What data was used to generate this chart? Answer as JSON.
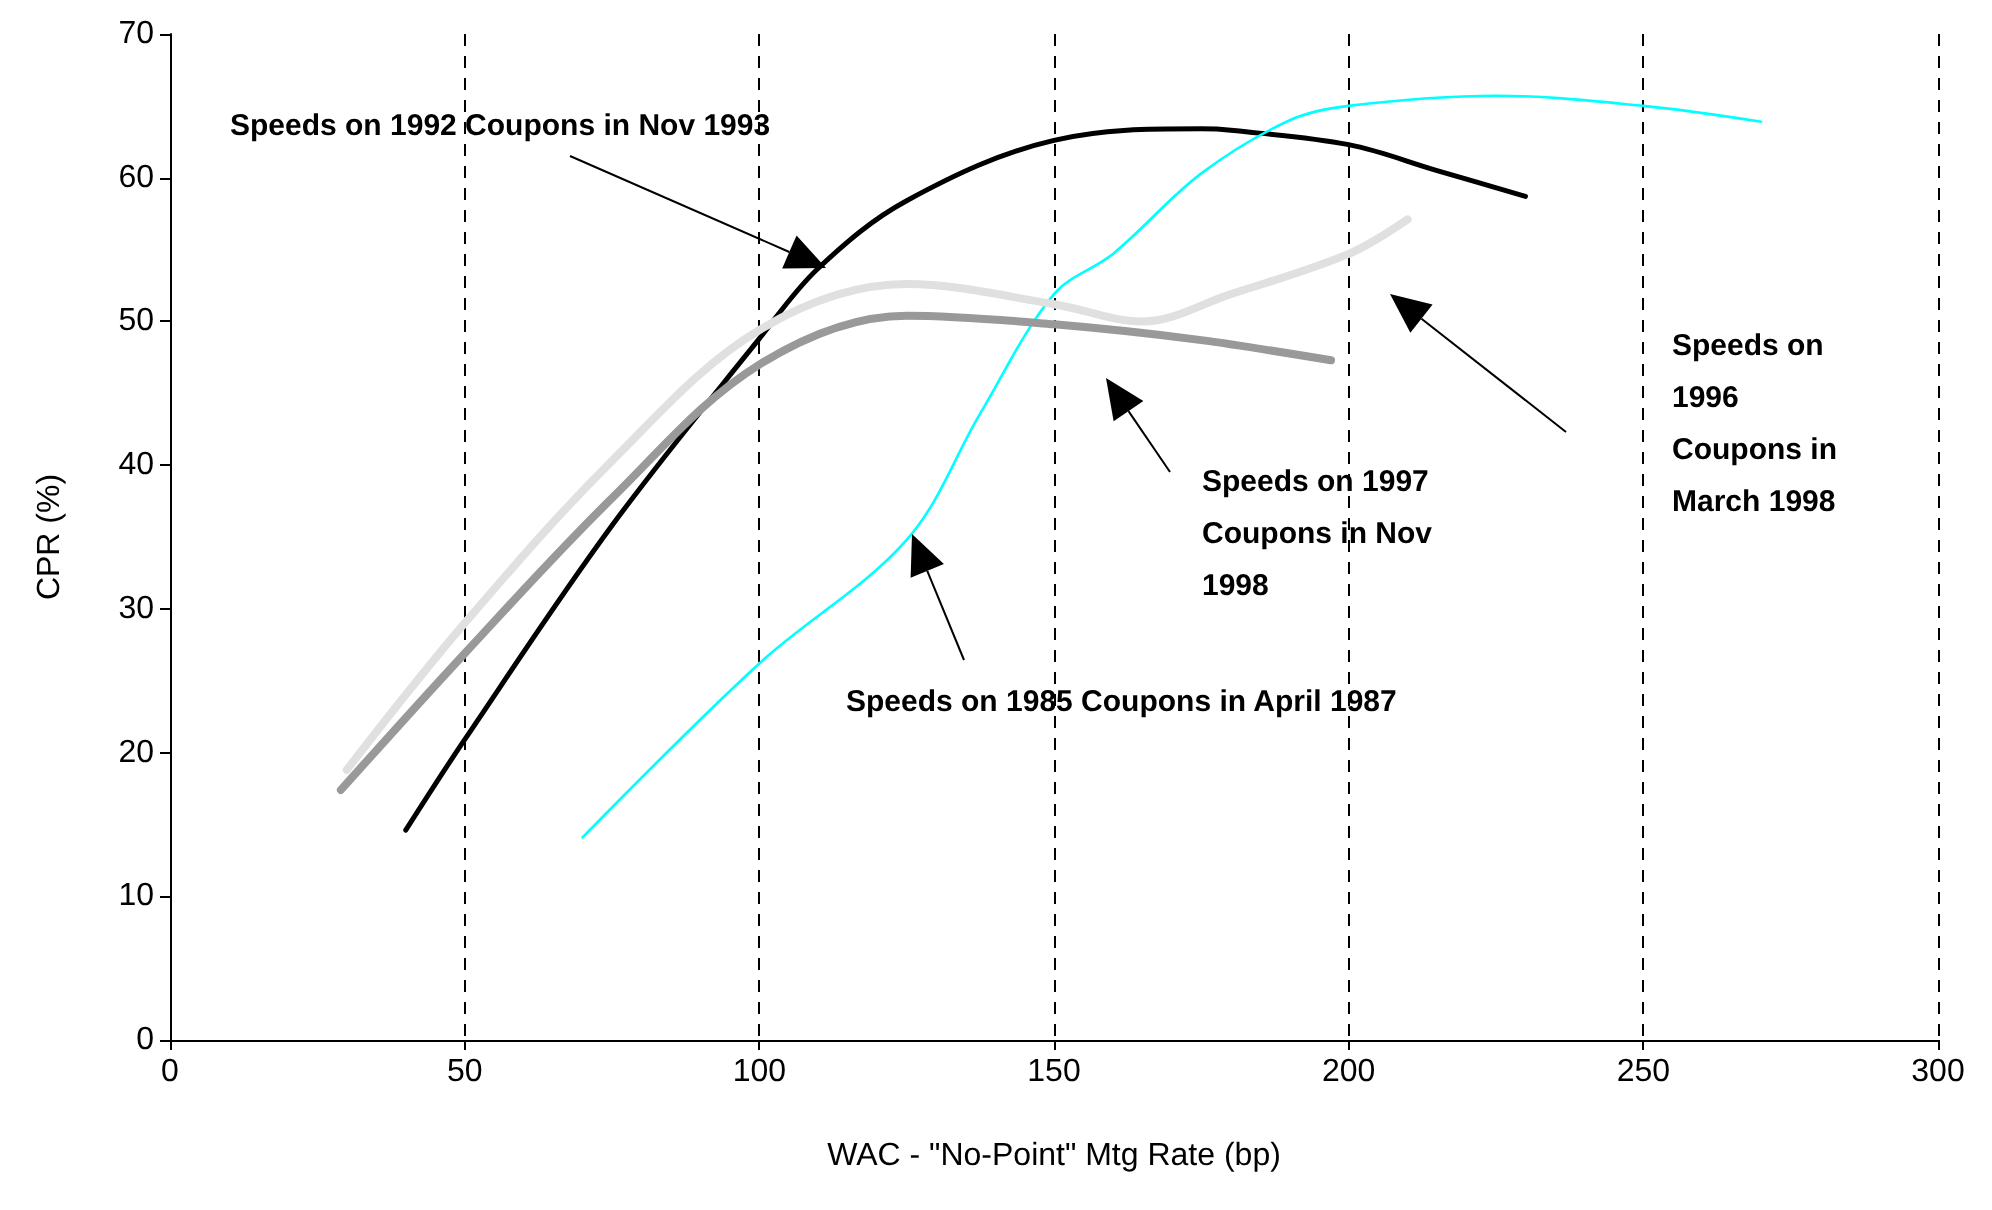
{
  "chart_data": {
    "type": "line",
    "xlabel": "WAC - \"No-Point\" Mtg Rate (bp)",
    "ylabel": "CPR (%)",
    "xlim": [
      0,
      300
    ],
    "xticks": [
      0,
      50,
      100,
      150,
      200,
      250,
      300
    ],
    "ylim": [
      0,
      70
    ],
    "yticks": [
      0,
      10,
      20,
      30,
      40,
      50,
      60,
      70
    ],
    "grid": "x",
    "marker": "none",
    "line_style": "solid",
    "series": [
      {
        "color": "#000000",
        "x": [
          40,
          50,
          75,
          100,
          110,
          125,
          150,
          175,
          180,
          200,
          215,
          230
        ],
        "values": [
          14.6,
          20.9,
          35.8,
          48.8,
          53.7,
          58.4,
          62.6,
          63.4,
          63.3,
          62.3,
          60.5,
          58.7
        ]
      },
      {
        "color": "#00ffff",
        "x": [
          70,
          100,
          125,
          137.5,
          150,
          160,
          175,
          190,
          200,
          225,
          250,
          270
        ],
        "values": [
          14.1,
          26.2,
          34.8,
          43.6,
          51.9,
          54.7,
          60.3,
          64.0,
          65.0,
          65.7,
          65.0,
          63.9
        ]
      },
      {
        "color": "#e0e0e0",
        "x": [
          30,
          50,
          75,
          100,
          125,
          150,
          165,
          180,
          200,
          210
        ],
        "values": [
          18.8,
          29.0,
          40.3,
          49.4,
          52.6,
          51.2,
          50.0,
          51.9,
          54.7,
          57.1
        ]
      },
      {
        "color": "#999999",
        "x": [
          29,
          50,
          75,
          100,
          125,
          150,
          175,
          197
        ],
        "values": [
          17.4,
          26.9,
          37.7,
          47.0,
          50.4,
          49.8,
          48.7,
          47.3
        ]
      }
    ],
    "annotations": [
      "Speeds on 1992 Coupons in Nov 1993",
      "Speeds on 1985 Coupons in April 1987",
      "Speeds on 1997 Coupons in Nov 1998",
      "Speeds on 1996 Coupons in March 1998"
    ]
  }
}
